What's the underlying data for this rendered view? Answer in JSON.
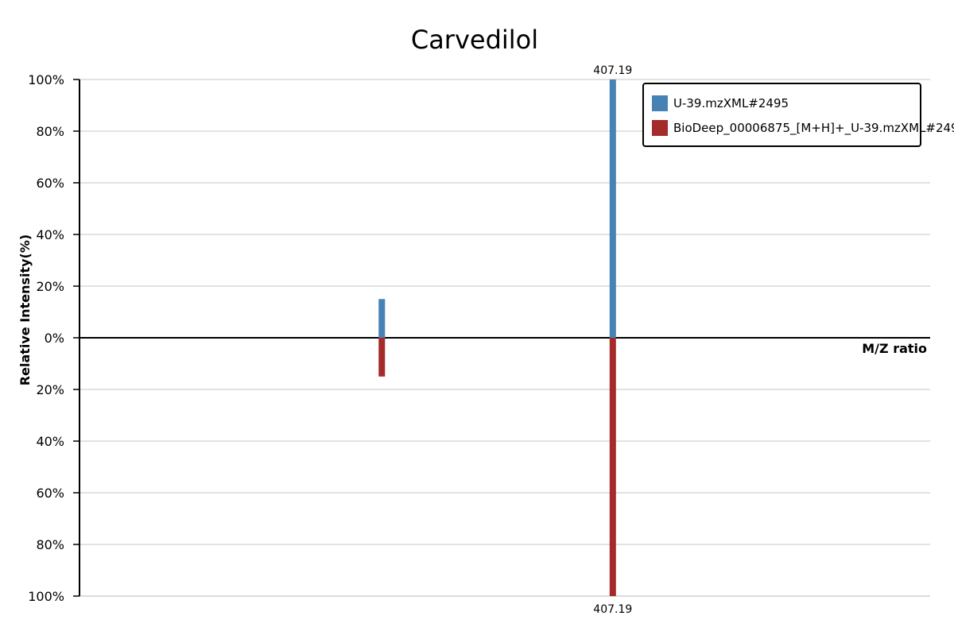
{
  "chart_data": {
    "type": "bar",
    "title": "Carvedilol",
    "xlabel": "M/Z ratio",
    "ylabel": "Relative Intensity(%)",
    "grid": true,
    "legend_position": "top-right",
    "ylim": [
      -100,
      100
    ],
    "y_tick_labels": [
      "100%",
      "80%",
      "60%",
      "40%",
      "20%",
      "0%",
      "20%",
      "40%",
      "60%",
      "80%",
      "100%"
    ],
    "y_tick_values": [
      100,
      80,
      60,
      40,
      20,
      0,
      -20,
      -40,
      -60,
      -80,
      -100
    ],
    "series": [
      {
        "name": "U-39.mzXML#2495",
        "color": "#4682b4",
        "direction": "up",
        "peaks": [
          {
            "mz": 274.14,
            "intensity": 15,
            "label": ""
          },
          {
            "mz": 407.19,
            "intensity": 100,
            "label": "407.19"
          }
        ]
      },
      {
        "name": "BioDeep_00006875_[M+H]+_U-39.mzXML#249",
        "color": "#a52a2a",
        "direction": "down",
        "peaks": [
          {
            "mz": 274.14,
            "intensity": 15,
            "label": ""
          },
          {
            "mz": 407.19,
            "intensity": 100,
            "label": "407.19"
          }
        ]
      }
    ],
    "xlim": [
      100,
      590
    ]
  }
}
